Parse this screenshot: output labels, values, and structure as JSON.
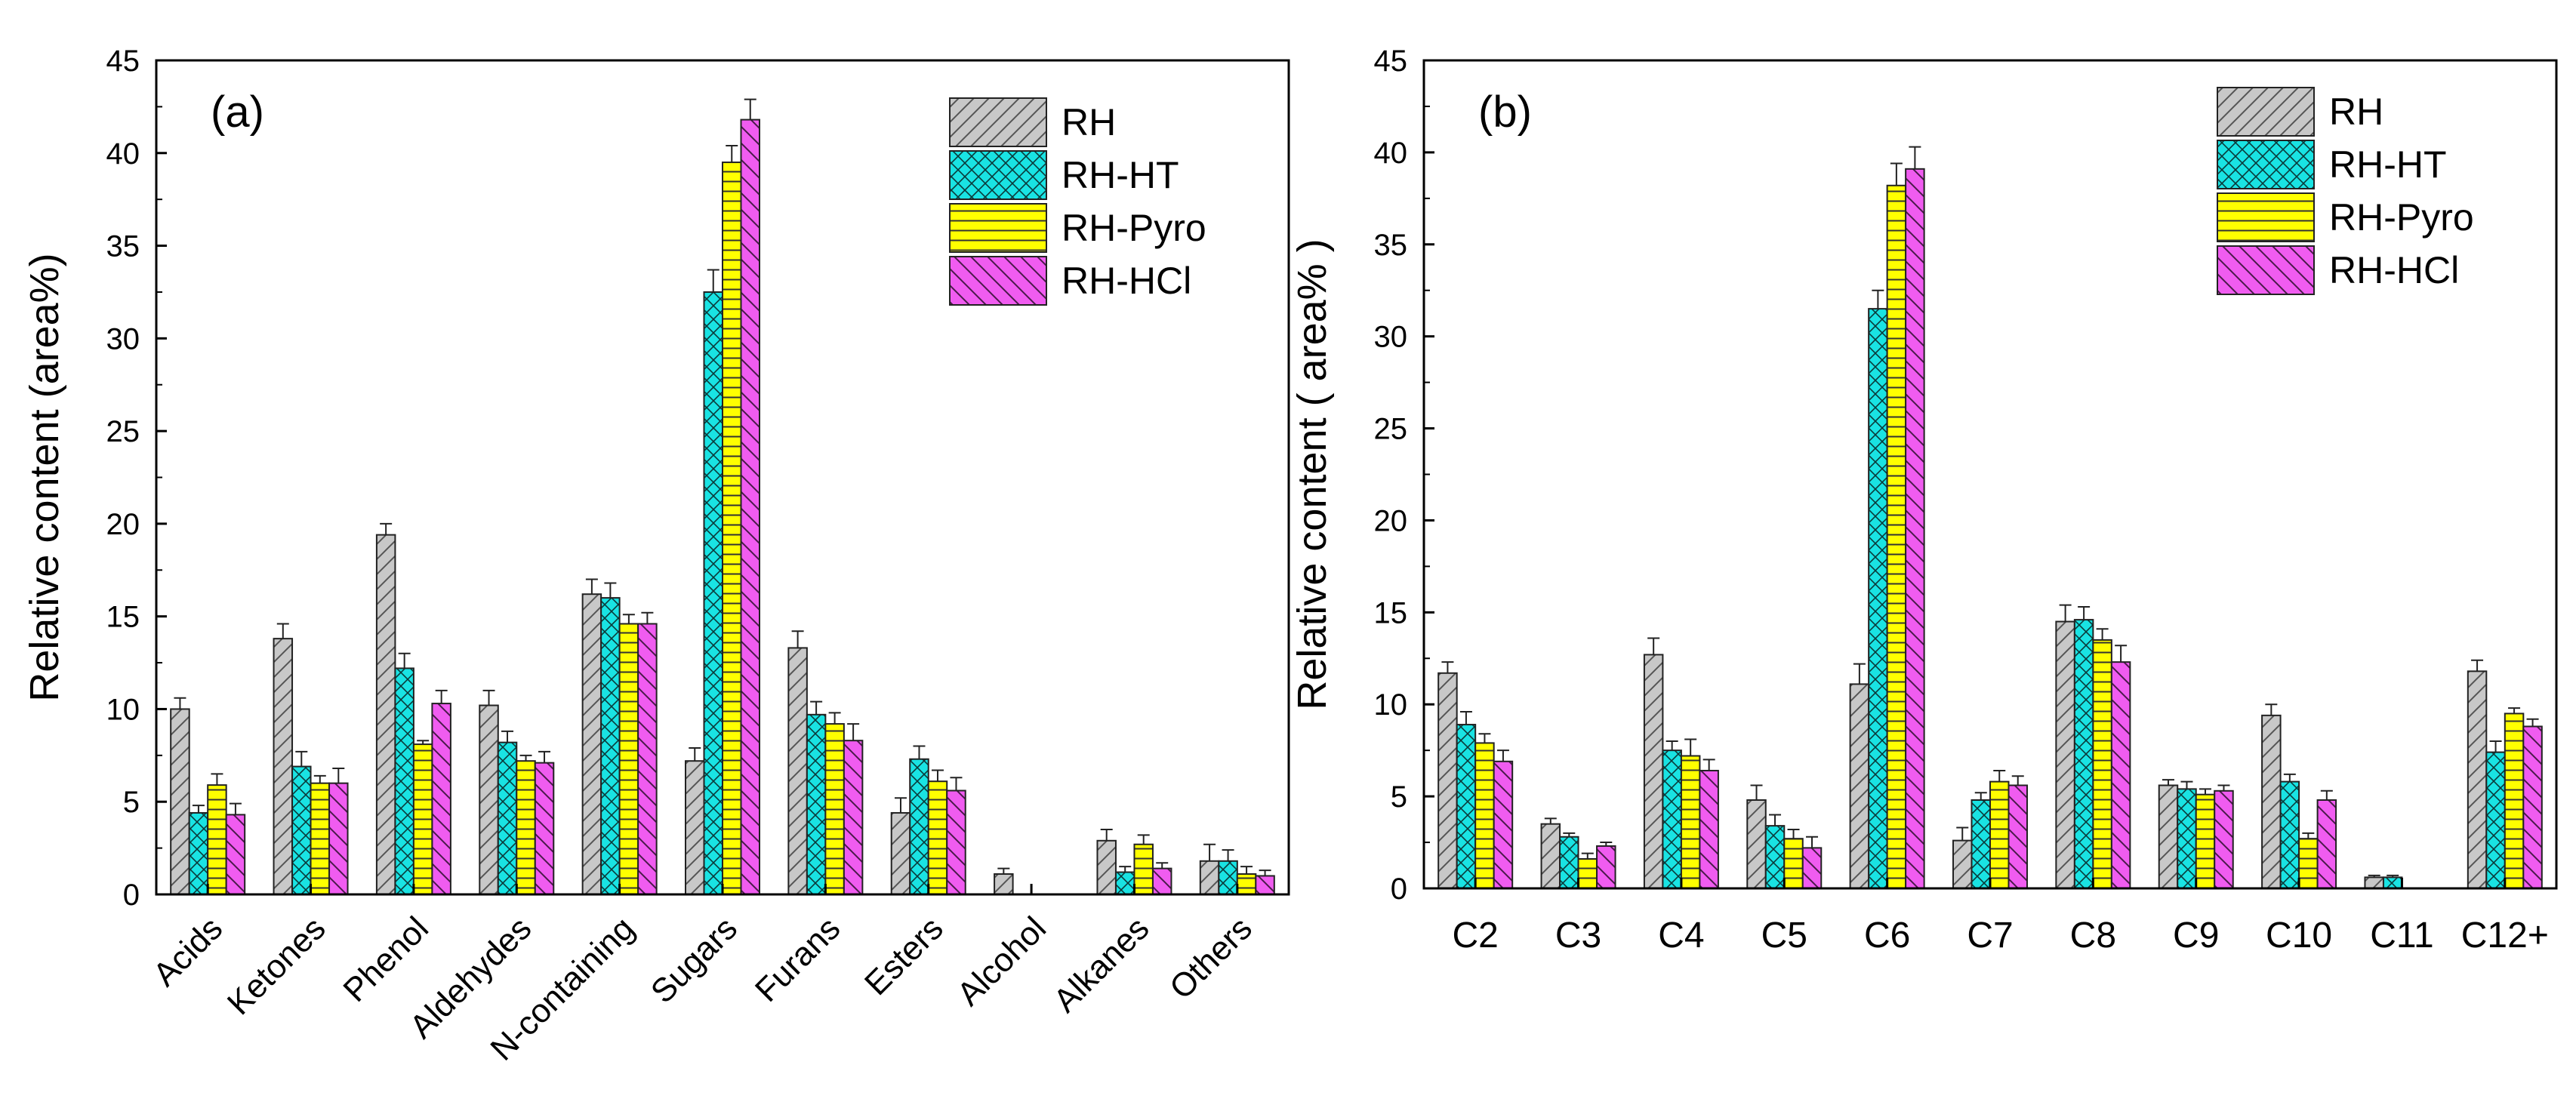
{
  "series_style": [
    {
      "name": "RH",
      "color": "#c8c8c8",
      "pattern": "diag-up"
    },
    {
      "name": "RH-HT",
      "color": "#19e3e3",
      "pattern": "crosshatch"
    },
    {
      "name": "RH-Pyro",
      "color": "#ffff00",
      "pattern": "horizontal"
    },
    {
      "name": "RH-HCl",
      "color": "#f05cf0",
      "pattern": "diag-down"
    }
  ],
  "chart_data": [
    {
      "type": "bar",
      "panel_label": "(a)",
      "title": "",
      "xlabel": "",
      "ylabel": "Relative content (area%)",
      "ylim": [
        0,
        45
      ],
      "yticks": [
        0,
        5,
        10,
        15,
        20,
        25,
        30,
        35,
        40,
        45
      ],
      "legend_position": "top-right",
      "categories": [
        "Acids",
        "Ketones",
        "Phenol",
        "Aldehydes",
        "N-containing",
        "Sugars",
        "Furans",
        "Esters",
        "Alcohol",
        "Alkanes",
        "Others"
      ],
      "series": [
        {
          "name": "RH",
          "values": [
            10.0,
            13.8,
            19.4,
            10.2,
            16.2,
            7.2,
            13.3,
            4.4,
            1.1,
            2.9,
            1.8
          ],
          "errors": [
            0.6,
            0.8,
            0.6,
            0.8,
            0.8,
            0.7,
            0.9,
            0.8,
            0.3,
            0.6,
            0.9
          ]
        },
        {
          "name": "RH-HT",
          "values": [
            4.4,
            6.9,
            12.2,
            8.2,
            16.0,
            32.5,
            9.7,
            7.3,
            0,
            1.2,
            1.8
          ],
          "errors": [
            0.4,
            0.8,
            0.8,
            0.6,
            0.8,
            1.2,
            0.7,
            0.7,
            0,
            0.3,
            0.6
          ]
        },
        {
          "name": "RH-Pyro",
          "values": [
            5.9,
            6.0,
            8.1,
            7.2,
            14.6,
            39.5,
            9.2,
            6.1,
            0,
            2.7,
            1.1
          ],
          "errors": [
            0.6,
            0.4,
            0.2,
            0.3,
            0.5,
            0.9,
            0.6,
            0.6,
            0,
            0.5,
            0.4
          ]
        },
        {
          "name": "RH-HCl",
          "values": [
            4.3,
            6.0,
            10.3,
            7.1,
            14.6,
            41.8,
            8.3,
            5.6,
            0,
            1.4,
            1.0
          ],
          "errors": [
            0.6,
            0.8,
            0.7,
            0.6,
            0.6,
            1.1,
            0.9,
            0.7,
            0,
            0.3,
            0.3
          ]
        }
      ]
    },
    {
      "type": "bar",
      "panel_label": "(b)",
      "title": "",
      "xlabel": "",
      "ylabel": "Relative content ( area% )",
      "ylim": [
        0,
        45
      ],
      "yticks": [
        0,
        5,
        10,
        15,
        20,
        25,
        30,
        35,
        40,
        45
      ],
      "legend_position": "top-right",
      "categories": [
        "C2",
        "C3",
        "C4",
        "C5",
        "C6",
        "C7",
        "C8",
        "C9",
        "C10",
        "C11",
        "C12+"
      ],
      "series": [
        {
          "name": "RH",
          "values": [
            11.7,
            3.5,
            12.7,
            4.8,
            11.1,
            2.6,
            14.5,
            5.6,
            9.4,
            0.6,
            11.8
          ],
          "errors": [
            0.6,
            0.3,
            0.9,
            0.8,
            1.1,
            0.7,
            0.9,
            0.3,
            0.6,
            0.1,
            0.6
          ]
        },
        {
          "name": "RH-HT",
          "values": [
            8.9,
            2.8,
            7.5,
            3.4,
            31.5,
            4.8,
            14.6,
            5.4,
            5.8,
            0.6,
            7.4
          ],
          "errors": [
            0.7,
            0.2,
            0.5,
            0.6,
            1.0,
            0.4,
            0.7,
            0.4,
            0.4,
            0.1,
            0.6
          ]
        },
        {
          "name": "RH-Pyro",
          "values": [
            7.9,
            1.6,
            7.2,
            2.7,
            38.2,
            5.8,
            13.5,
            5.1,
            2.7,
            0,
            9.5
          ],
          "errors": [
            0.5,
            0.3,
            0.9,
            0.5,
            1.2,
            0.6,
            0.6,
            0.3,
            0.3,
            0,
            0.3
          ]
        },
        {
          "name": "RH-HCl",
          "values": [
            6.9,
            2.3,
            6.4,
            2.2,
            39.1,
            5.6,
            12.3,
            5.3,
            4.8,
            0,
            8.8
          ],
          "errors": [
            0.6,
            0.2,
            0.6,
            0.6,
            1.2,
            0.5,
            0.9,
            0.3,
            0.5,
            0,
            0.4
          ]
        }
      ]
    }
  ]
}
